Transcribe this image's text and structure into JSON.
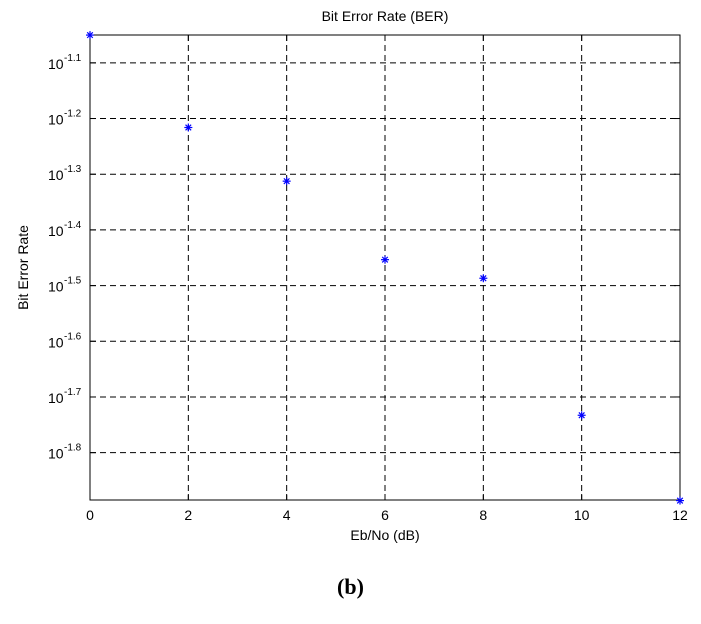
{
  "chart_data": {
    "type": "scatter",
    "title": "Bit Error Rate (BER)",
    "xlabel": "Eb/No (dB)",
    "ylabel": "Bit Error Rate",
    "xlim": [
      0,
      12
    ],
    "ylim_log10": [
      -1.885,
      -1.05
    ],
    "y_scale": "log",
    "grid": true,
    "x_ticks": [
      0,
      2,
      4,
      6,
      8,
      10,
      12
    ],
    "y_ticks": [
      {
        "exp": -1.1,
        "base": "10",
        "exponent": "-1.1"
      },
      {
        "exp": -1.2,
        "base": "10",
        "exponent": "-1.2"
      },
      {
        "exp": -1.3,
        "base": "10",
        "exponent": "-1.3"
      },
      {
        "exp": -1.4,
        "base": "10",
        "exponent": "-1.4"
      },
      {
        "exp": -1.5,
        "base": "10",
        "exponent": "-1.5"
      },
      {
        "exp": -1.6,
        "base": "10",
        "exponent": "-1.6"
      },
      {
        "exp": -1.7,
        "base": "10",
        "exponent": "-1.7"
      },
      {
        "exp": -1.8,
        "base": "10",
        "exponent": "-1.8"
      }
    ],
    "series": [
      {
        "marker": "asterisk",
        "color": "#0000ff",
        "x": [
          0,
          2,
          4,
          6,
          8,
          10,
          12
        ],
        "y": [
          0.0891,
          0.0608,
          0.0487,
          0.0352,
          0.0326,
          0.0185,
          0.013
        ]
      }
    ]
  },
  "caption": "(b)"
}
